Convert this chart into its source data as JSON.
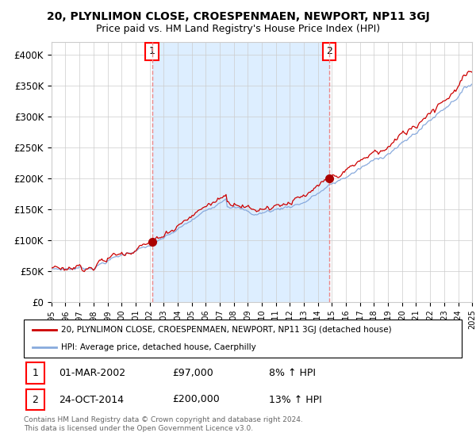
{
  "title": "20, PLYNLIMON CLOSE, CROESPENMAEN, NEWPORT, NP11 3GJ",
  "subtitle": "Price paid vs. HM Land Registry's House Price Index (HPI)",
  "ylim": [
    0,
    420000
  ],
  "yticks": [
    0,
    50000,
    100000,
    150000,
    200000,
    250000,
    300000,
    350000,
    400000
  ],
  "ytick_labels": [
    "£0",
    "£50K",
    "£100K",
    "£150K",
    "£200K",
    "£250K",
    "£300K",
    "£350K",
    "£400K"
  ],
  "background_color": "#ffffff",
  "grid_color": "#cccccc",
  "fill_color": "#ddeeff",
  "sale1_date": 2002.17,
  "sale1_price": 97000,
  "sale1_label": "1",
  "sale2_date": 2014.81,
  "sale2_price": 200000,
  "sale2_label": "2",
  "vline_color": "#ee8888",
  "sale_dot_color": "#aa0000",
  "hpi_line_color": "#88aadd",
  "price_line_color": "#cc0000",
  "legend_label_price": "20, PLYNLIMON CLOSE, CROESPENMAEN, NEWPORT, NP11 3GJ (detached house)",
  "legend_label_hpi": "HPI: Average price, detached house, Caerphilly",
  "annotation1_date": "01-MAR-2002",
  "annotation1_price": "£97,000",
  "annotation1_pct": "8% ↑ HPI",
  "annotation2_date": "24-OCT-2014",
  "annotation2_price": "£200,000",
  "annotation2_pct": "13% ↑ HPI",
  "footer": "Contains HM Land Registry data © Crown copyright and database right 2024.\nThis data is licensed under the Open Government Licence v3.0."
}
